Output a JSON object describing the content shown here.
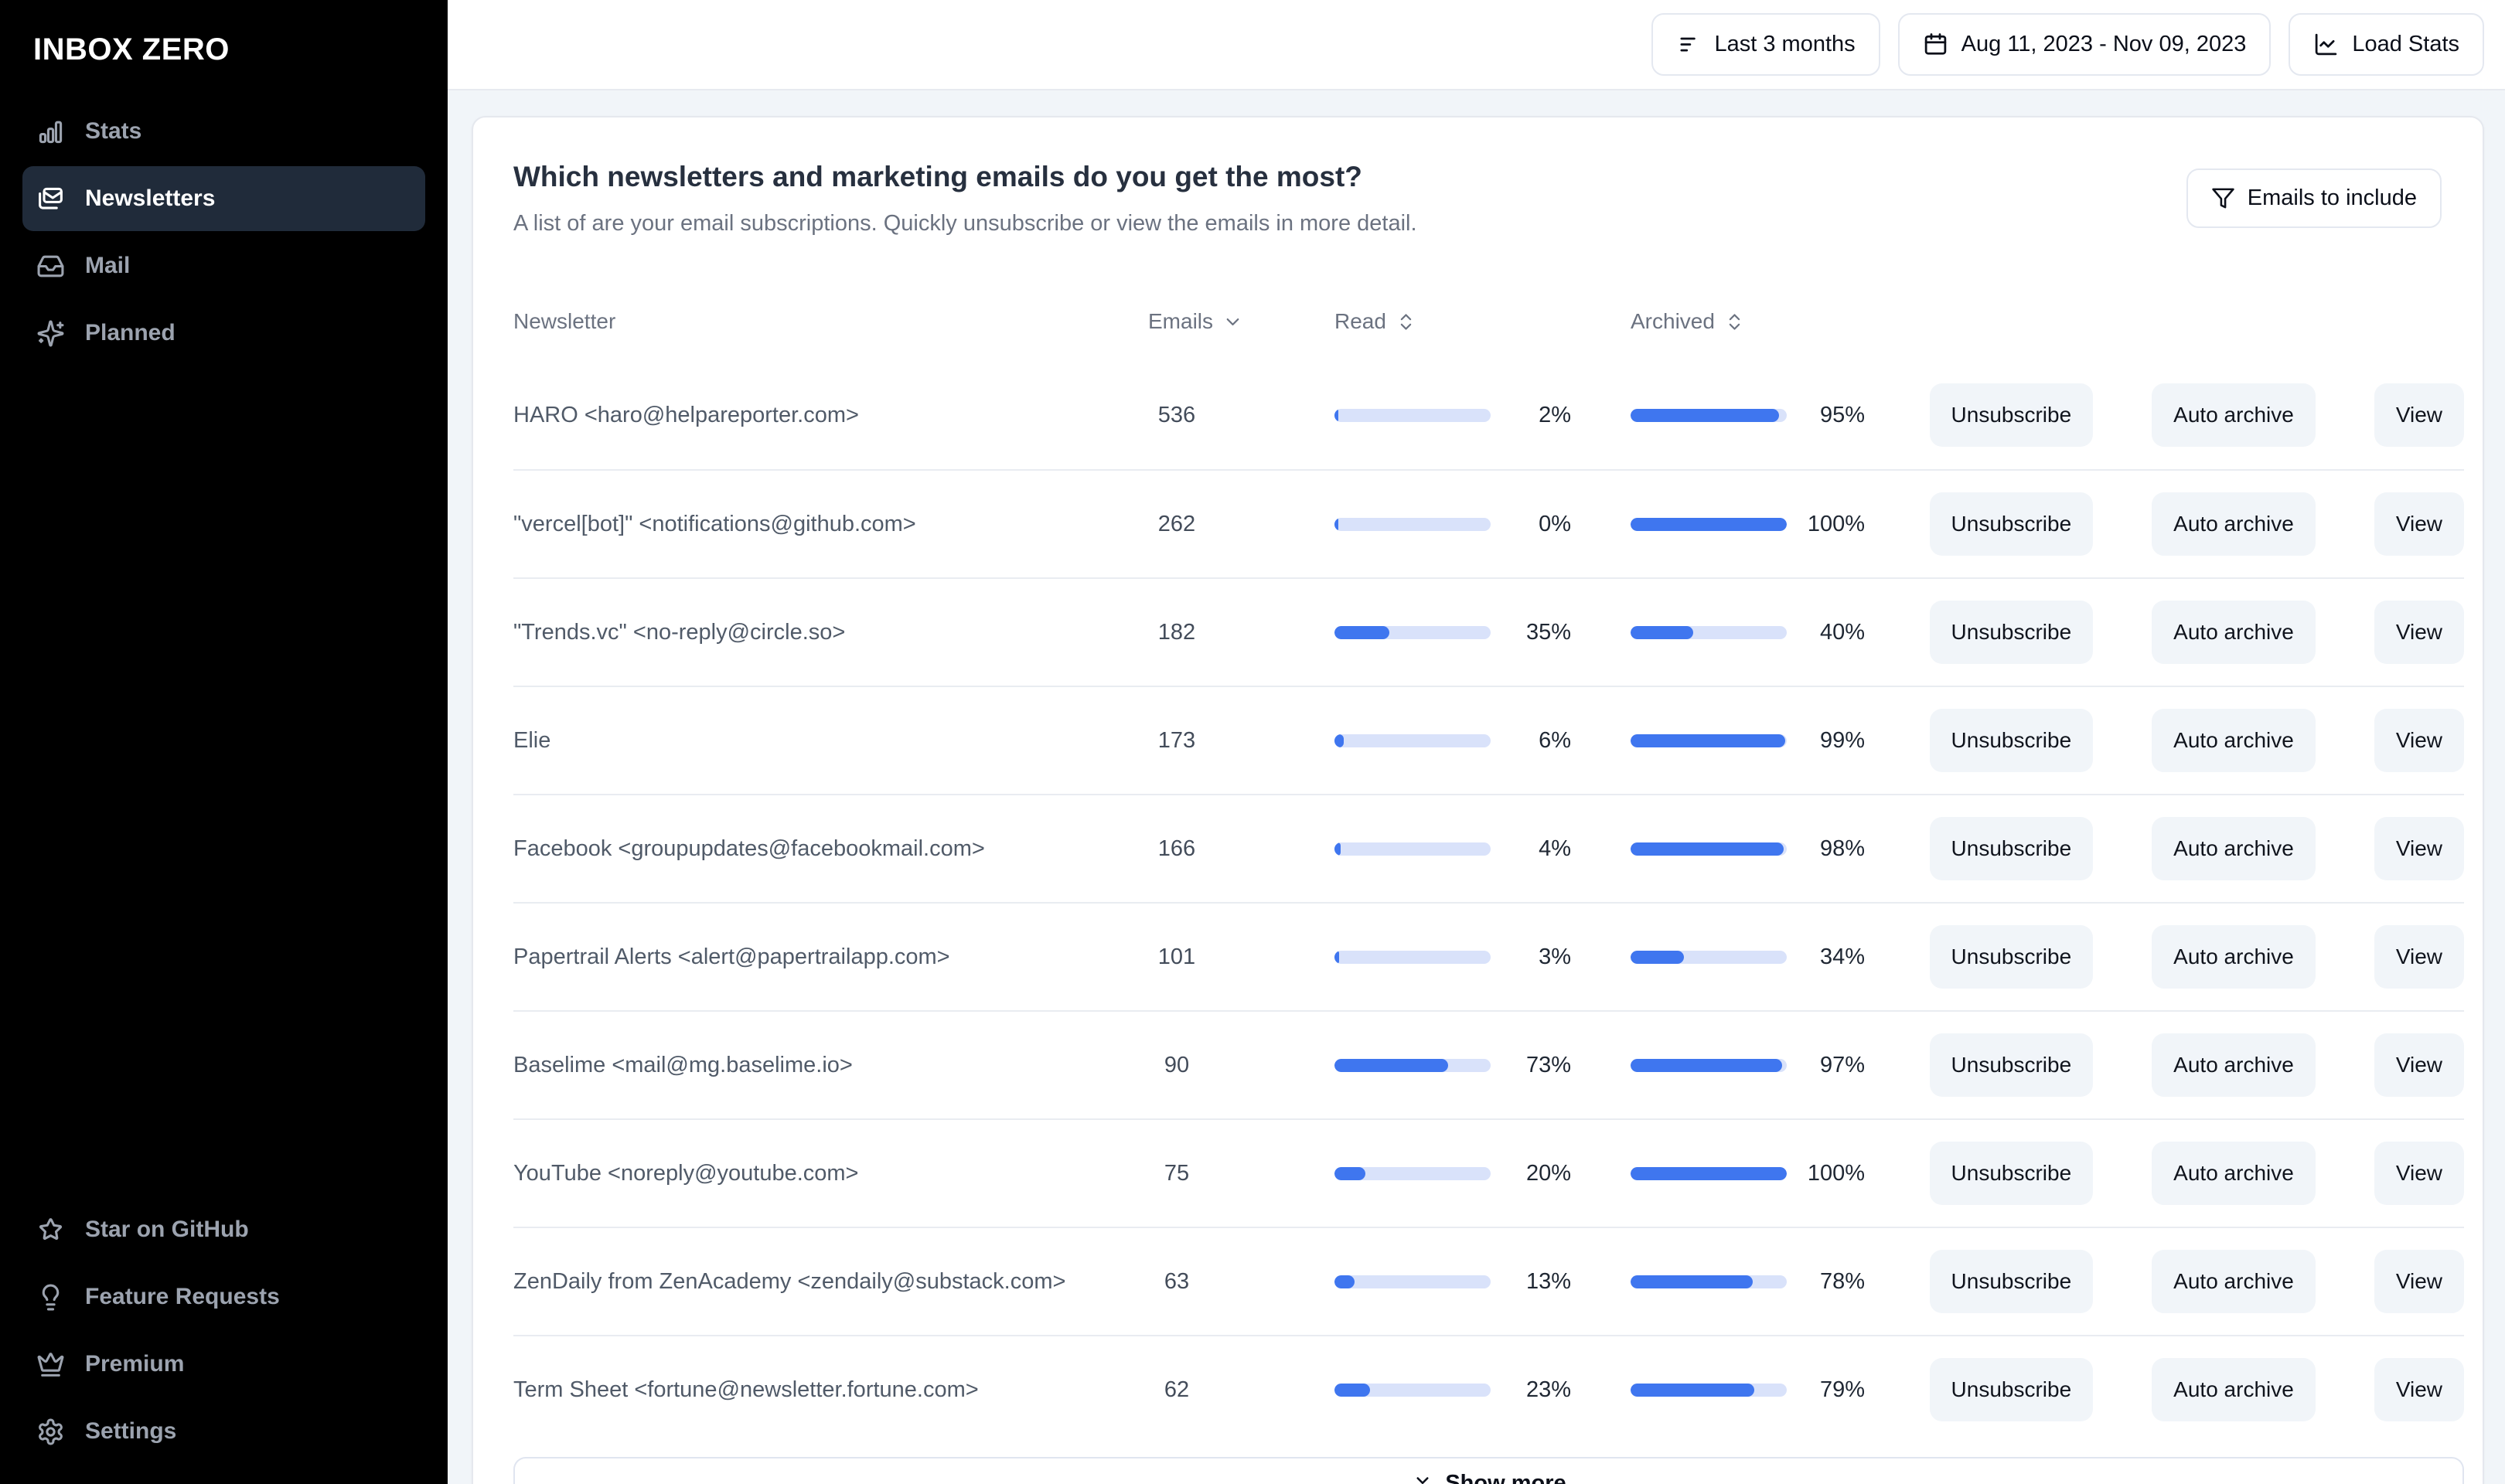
{
  "brand": {
    "logo": "INBOX ZERO"
  },
  "sidebar": {
    "items": [
      {
        "icon": "stats-icon",
        "label": "Stats",
        "active": false
      },
      {
        "icon": "newsletters-icon",
        "label": "Newsletters",
        "active": true
      },
      {
        "icon": "mail-icon",
        "label": "Mail",
        "active": false
      },
      {
        "icon": "planned-icon",
        "label": "Planned",
        "active": false
      }
    ],
    "footer_items": [
      {
        "icon": "star-icon",
        "label": "Star on GitHub"
      },
      {
        "icon": "bulb-icon",
        "label": "Feature Requests"
      },
      {
        "icon": "crown-icon",
        "label": "Premium"
      },
      {
        "icon": "gear-icon",
        "label": "Settings"
      }
    ]
  },
  "topbar": {
    "buttons": [
      {
        "icon": "filter-lines-icon",
        "label": "Last 3 months"
      },
      {
        "icon": "calendar-icon",
        "label": "Aug 11, 2023 - Nov 09, 2023"
      },
      {
        "icon": "line-chart-icon",
        "label": "Load Stats"
      }
    ]
  },
  "main": {
    "title": "Which newsletters and marketing emails do you get the most?",
    "subtitle": "A list of are your email subscriptions. Quickly unsubscribe or view the emails in more detail.",
    "filter_button": "Emails to include",
    "table": {
      "columns": [
        {
          "label": "Newsletter",
          "sort": null
        },
        {
          "label": "Emails",
          "sort": "down"
        },
        {
          "label": "Read",
          "sort": "updown"
        },
        {
          "label": "Archived",
          "sort": "updown"
        }
      ],
      "rows": [
        {
          "name": "HARO <haro@helpareporter.com>",
          "emails": 536,
          "read_pct": 2,
          "archived_pct": 95
        },
        {
          "name": "\"vercel[bot]\" <notifications@github.com>",
          "emails": 262,
          "read_pct": 0,
          "archived_pct": 100
        },
        {
          "name": "\"Trends.vc\" <no-reply@circle.so>",
          "emails": 182,
          "read_pct": 35,
          "archived_pct": 40
        },
        {
          "name": "Elie",
          "emails": 173,
          "read_pct": 6,
          "archived_pct": 99
        },
        {
          "name": "Facebook <groupupdates@facebookmail.com>",
          "emails": 166,
          "read_pct": 4,
          "archived_pct": 98
        },
        {
          "name": "Papertrail Alerts <alert@papertrailapp.com>",
          "emails": 101,
          "read_pct": 3,
          "archived_pct": 34
        },
        {
          "name": "Baselime <mail@mg.baselime.io>",
          "emails": 90,
          "read_pct": 73,
          "archived_pct": 97
        },
        {
          "name": "YouTube <noreply@youtube.com>",
          "emails": 75,
          "read_pct": 20,
          "archived_pct": 100
        },
        {
          "name": "ZenDaily from ZenAcademy <zendaily@substack.com>",
          "emails": 63,
          "read_pct": 13,
          "archived_pct": 78
        },
        {
          "name": "Term Sheet <fortune@newsletter.fortune.com>",
          "emails": 62,
          "read_pct": 23,
          "archived_pct": 79
        }
      ],
      "row_actions": [
        "Unsubscribe",
        "Auto archive",
        "View"
      ],
      "show_more": "Show more"
    }
  },
  "colors": {
    "accent_blue": "#3f76ef",
    "bar_track": "#d9e2fa",
    "sidebar_bg": "#000000",
    "sidebar_active_bg": "#202b3a",
    "action_button_bg": "#f1f5f9",
    "page_bg": "#f1f5f9"
  }
}
